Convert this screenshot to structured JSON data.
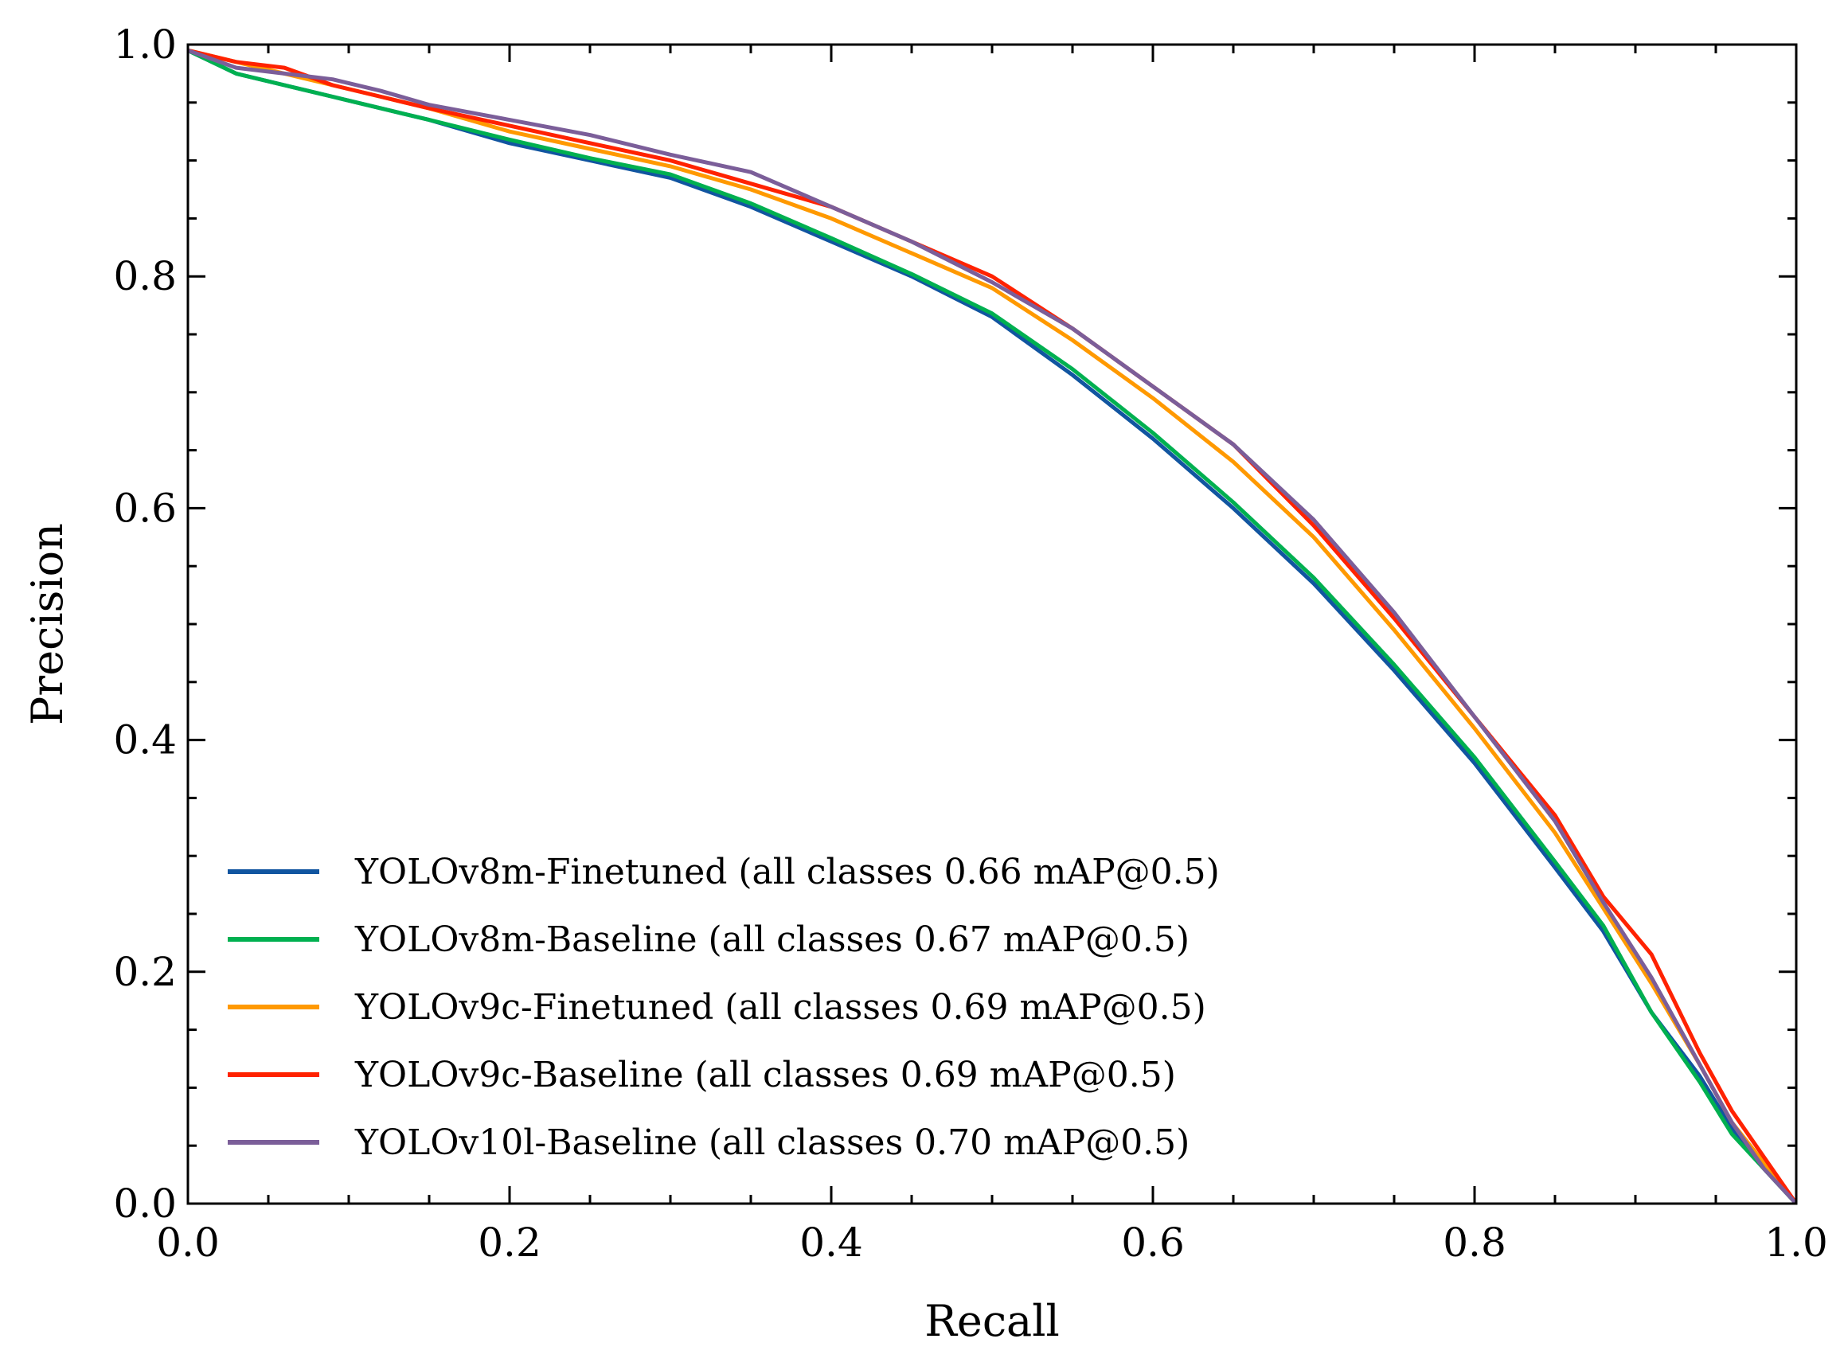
{
  "chart_data": {
    "type": "line",
    "title": "",
    "xlabel": "Recall",
    "ylabel": "Precision",
    "xlim": [
      0,
      1
    ],
    "ylim": [
      0,
      1
    ],
    "xticks": [
      "0.0",
      "0.2",
      "0.4",
      "0.6",
      "0.8",
      "1.0"
    ],
    "yticks": [
      "0.0",
      "0.2",
      "0.4",
      "0.6",
      "0.8",
      "1.0"
    ],
    "grid": false,
    "legend_position": "lower-left",
    "series": [
      {
        "name": "YOLOv8m-Finetuned (all classes 0.66 mAP@0.5)",
        "color": "#1155a0",
        "points": [
          [
            0,
            0.995
          ],
          [
            0.03,
            0.975
          ],
          [
            0.06,
            0.965
          ],
          [
            0.09,
            0.955
          ],
          [
            0.12,
            0.945
          ],
          [
            0.15,
            0.935
          ],
          [
            0.2,
            0.915
          ],
          [
            0.25,
            0.9
          ],
          [
            0.3,
            0.885
          ],
          [
            0.35,
            0.86
          ],
          [
            0.4,
            0.83
          ],
          [
            0.45,
            0.8
          ],
          [
            0.5,
            0.765
          ],
          [
            0.55,
            0.715
          ],
          [
            0.6,
            0.66
          ],
          [
            0.65,
            0.6
          ],
          [
            0.7,
            0.535
          ],
          [
            0.75,
            0.46
          ],
          [
            0.8,
            0.38
          ],
          [
            0.85,
            0.29
          ],
          [
            0.88,
            0.235
          ],
          [
            0.91,
            0.165
          ],
          [
            0.94,
            0.11
          ],
          [
            0.96,
            0.065
          ],
          [
            0.98,
            0.03
          ],
          [
            1.0,
            0.0
          ]
        ]
      },
      {
        "name": "YOLOv8m-Baseline (all classes 0.67 mAP@0.5)",
        "color": "#00b050",
        "points": [
          [
            0,
            0.995
          ],
          [
            0.03,
            0.975
          ],
          [
            0.06,
            0.965
          ],
          [
            0.09,
            0.955
          ],
          [
            0.12,
            0.945
          ],
          [
            0.15,
            0.935
          ],
          [
            0.2,
            0.918
          ],
          [
            0.25,
            0.902
          ],
          [
            0.3,
            0.888
          ],
          [
            0.35,
            0.863
          ],
          [
            0.4,
            0.833
          ],
          [
            0.45,
            0.802
          ],
          [
            0.5,
            0.768
          ],
          [
            0.55,
            0.72
          ],
          [
            0.6,
            0.665
          ],
          [
            0.65,
            0.605
          ],
          [
            0.7,
            0.54
          ],
          [
            0.75,
            0.465
          ],
          [
            0.8,
            0.385
          ],
          [
            0.85,
            0.295
          ],
          [
            0.88,
            0.24
          ],
          [
            0.91,
            0.165
          ],
          [
            0.94,
            0.105
          ],
          [
            0.96,
            0.06
          ],
          [
            0.98,
            0.03
          ],
          [
            1.0,
            0.0
          ]
        ]
      },
      {
        "name": "YOLOv9c-Finetuned (all classes 0.69 mAP@0.5)",
        "color": "#ff9900",
        "points": [
          [
            0,
            0.995
          ],
          [
            0.03,
            0.985
          ],
          [
            0.06,
            0.975
          ],
          [
            0.09,
            0.965
          ],
          [
            0.12,
            0.955
          ],
          [
            0.15,
            0.945
          ],
          [
            0.2,
            0.925
          ],
          [
            0.25,
            0.91
          ],
          [
            0.3,
            0.895
          ],
          [
            0.35,
            0.875
          ],
          [
            0.4,
            0.85
          ],
          [
            0.45,
            0.82
          ],
          [
            0.5,
            0.79
          ],
          [
            0.55,
            0.745
          ],
          [
            0.6,
            0.695
          ],
          [
            0.65,
            0.64
          ],
          [
            0.7,
            0.575
          ],
          [
            0.75,
            0.495
          ],
          [
            0.8,
            0.41
          ],
          [
            0.85,
            0.32
          ],
          [
            0.88,
            0.255
          ],
          [
            0.91,
            0.19
          ],
          [
            0.94,
            0.12
          ],
          [
            0.96,
            0.07
          ],
          [
            0.98,
            0.035
          ],
          [
            1.0,
            0.0
          ]
        ]
      },
      {
        "name": "YOLOv9c-Baseline (all classes 0.69 mAP@0.5)",
        "color": "#ff2200",
        "points": [
          [
            0,
            0.995
          ],
          [
            0.03,
            0.985
          ],
          [
            0.06,
            0.98
          ],
          [
            0.09,
            0.965
          ],
          [
            0.12,
            0.955
          ],
          [
            0.15,
            0.945
          ],
          [
            0.2,
            0.93
          ],
          [
            0.25,
            0.915
          ],
          [
            0.3,
            0.9
          ],
          [
            0.35,
            0.88
          ],
          [
            0.4,
            0.86
          ],
          [
            0.45,
            0.83
          ],
          [
            0.5,
            0.8
          ],
          [
            0.55,
            0.755
          ],
          [
            0.6,
            0.705
          ],
          [
            0.65,
            0.655
          ],
          [
            0.7,
            0.585
          ],
          [
            0.75,
            0.505
          ],
          [
            0.8,
            0.42
          ],
          [
            0.85,
            0.335
          ],
          [
            0.88,
            0.265
          ],
          [
            0.91,
            0.215
          ],
          [
            0.94,
            0.13
          ],
          [
            0.96,
            0.08
          ],
          [
            0.98,
            0.04
          ],
          [
            1.0,
            0.0
          ]
        ]
      },
      {
        "name": "YOLOv10l-Baseline (all classes 0.70 mAP@0.5)",
        "color": "#7b5e99",
        "points": [
          [
            0,
            0.995
          ],
          [
            0.03,
            0.98
          ],
          [
            0.06,
            0.975
          ],
          [
            0.09,
            0.97
          ],
          [
            0.12,
            0.96
          ],
          [
            0.15,
            0.948
          ],
          [
            0.2,
            0.935
          ],
          [
            0.25,
            0.922
          ],
          [
            0.3,
            0.905
          ],
          [
            0.35,
            0.89
          ],
          [
            0.4,
            0.86
          ],
          [
            0.45,
            0.83
          ],
          [
            0.5,
            0.795
          ],
          [
            0.55,
            0.755
          ],
          [
            0.6,
            0.705
          ],
          [
            0.65,
            0.655
          ],
          [
            0.7,
            0.59
          ],
          [
            0.75,
            0.51
          ],
          [
            0.8,
            0.42
          ],
          [
            0.85,
            0.33
          ],
          [
            0.88,
            0.26
          ],
          [
            0.91,
            0.195
          ],
          [
            0.94,
            0.12
          ],
          [
            0.96,
            0.07
          ],
          [
            0.98,
            0.03
          ],
          [
            1.0,
            0.0
          ]
        ]
      }
    ]
  }
}
